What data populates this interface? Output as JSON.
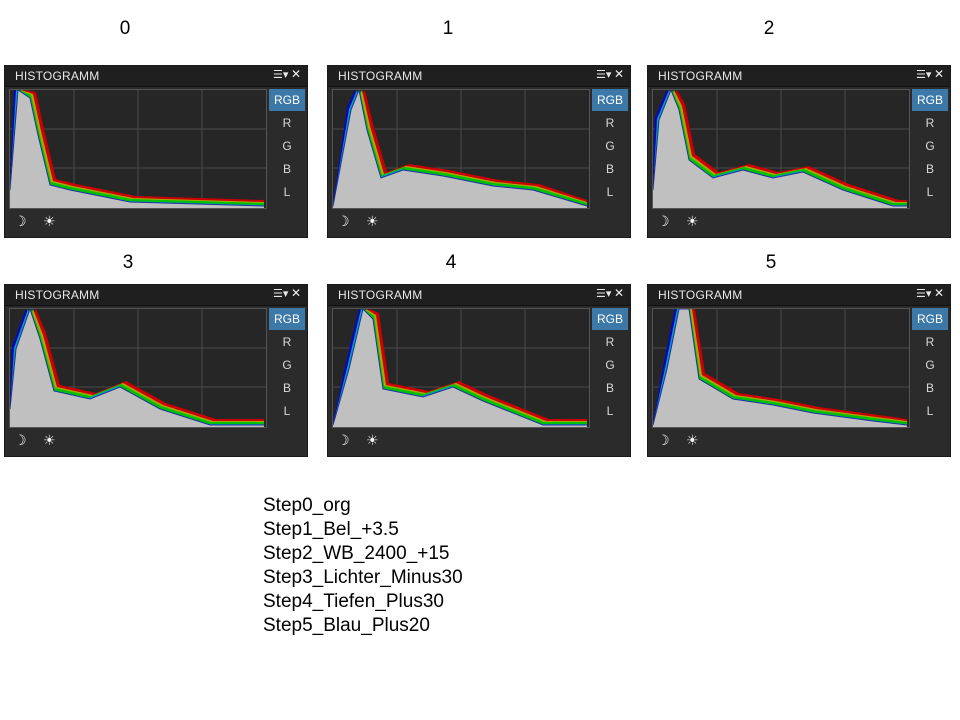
{
  "panel_title": "HISTOGRAMM",
  "header_icons": [
    "menu-icon",
    "close-icon"
  ],
  "channels": [
    "RGB",
    "R",
    "G",
    "B",
    "L"
  ],
  "active_channel": "RGB",
  "footer_icons": [
    "moon-icon",
    "sun-icon"
  ],
  "colors": {
    "panel_bg": "#2b2b2b",
    "active_tab": "#3c78a8",
    "red": "#cc0000",
    "green": "#00c000",
    "blue": "#0000d0",
    "yellow": "#a8a800",
    "cyan": "#00a0b0",
    "magenta": "#c000c0",
    "luminance": "#c0c0c0"
  },
  "panels": [
    {
      "step": "0"
    },
    {
      "step": "1"
    },
    {
      "step": "2"
    },
    {
      "step": "3"
    },
    {
      "step": "4"
    },
    {
      "step": "5"
    }
  ],
  "steps": [
    "Step0_org",
    "Step1_Bel_+3.5",
    "Step2_WB_2400_+15",
    "Step3_Lichter_Minus30",
    "Step4_Tiefen_Plus30",
    "Step5_Blau_Plus20"
  ]
}
